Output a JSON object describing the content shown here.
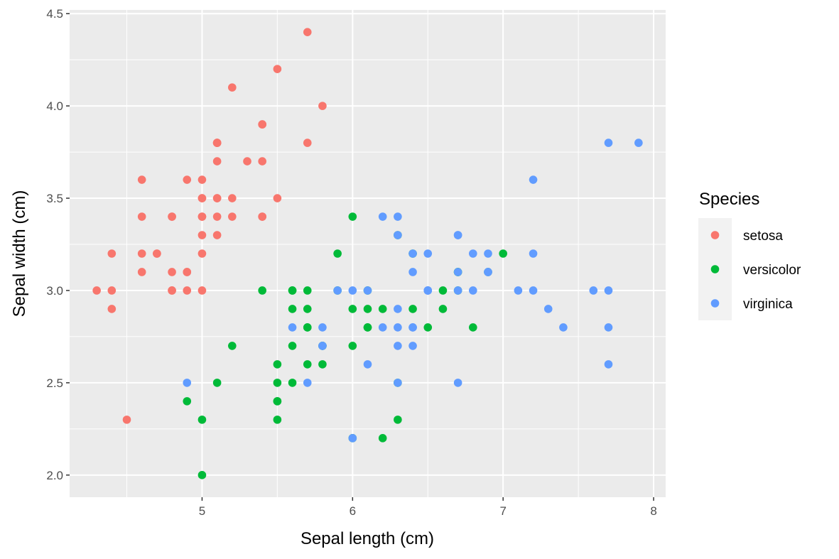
{
  "chart_data": {
    "type": "scatter",
    "title": "",
    "xlabel": "Sepal length (cm)",
    "ylabel": "Sepal width (cm)",
    "xlim": [
      4.12,
      8.08
    ],
    "ylim": [
      1.88,
      4.52
    ],
    "xticks": [
      "5",
      "6",
      "7",
      "8"
    ],
    "xtick_values": [
      5,
      6,
      7,
      8
    ],
    "yticks": [
      "2.0",
      "2.5",
      "3.0",
      "3.5",
      "4.0",
      "4.5"
    ],
    "ytick_values": [
      2.0,
      2.5,
      3.0,
      3.5,
      4.0,
      4.5
    ],
    "grid": true,
    "legend": {
      "title": "Species",
      "placement": "right"
    },
    "series": [
      {
        "name": "setosa",
        "color": "#F8766D",
        "points": [
          [
            5.1,
            3.5
          ],
          [
            4.9,
            3.0
          ],
          [
            4.7,
            3.2
          ],
          [
            4.6,
            3.1
          ],
          [
            5.0,
            3.6
          ],
          [
            5.4,
            3.9
          ],
          [
            4.6,
            3.4
          ],
          [
            5.0,
            3.4
          ],
          [
            4.4,
            2.9
          ],
          [
            4.9,
            3.1
          ],
          [
            5.4,
            3.7
          ],
          [
            4.8,
            3.4
          ],
          [
            4.8,
            3.0
          ],
          [
            4.3,
            3.0
          ],
          [
            5.8,
            4.0
          ],
          [
            5.7,
            4.4
          ],
          [
            5.4,
            3.9
          ],
          [
            5.1,
            3.5
          ],
          [
            5.7,
            3.8
          ],
          [
            5.1,
            3.8
          ],
          [
            5.4,
            3.4
          ],
          [
            5.1,
            3.7
          ],
          [
            4.6,
            3.6
          ],
          [
            5.1,
            3.3
          ],
          [
            4.8,
            3.4
          ],
          [
            5.0,
            3.0
          ],
          [
            5.0,
            3.4
          ],
          [
            5.2,
            3.5
          ],
          [
            5.2,
            3.4
          ],
          [
            4.7,
            3.2
          ],
          [
            4.8,
            3.1
          ],
          [
            5.4,
            3.4
          ],
          [
            5.2,
            4.1
          ],
          [
            5.5,
            4.2
          ],
          [
            4.9,
            3.1
          ],
          [
            5.0,
            3.2
          ],
          [
            5.5,
            3.5
          ],
          [
            4.9,
            3.6
          ],
          [
            4.4,
            3.0
          ],
          [
            5.1,
            3.4
          ],
          [
            5.0,
            3.5
          ],
          [
            4.5,
            2.3
          ],
          [
            4.4,
            3.2
          ],
          [
            5.0,
            3.5
          ],
          [
            5.1,
            3.8
          ],
          [
            4.8,
            3.0
          ],
          [
            5.1,
            3.8
          ],
          [
            4.6,
            3.2
          ],
          [
            5.3,
            3.7
          ],
          [
            5.0,
            3.3
          ]
        ]
      },
      {
        "name": "versicolor",
        "color": "#00BA38",
        "points": [
          [
            7.0,
            3.2
          ],
          [
            6.4,
            3.2
          ],
          [
            6.9,
            3.1
          ],
          [
            5.5,
            2.3
          ],
          [
            6.5,
            2.8
          ],
          [
            5.7,
            2.8
          ],
          [
            6.3,
            3.3
          ],
          [
            4.9,
            2.4
          ],
          [
            6.6,
            2.9
          ],
          [
            5.2,
            2.7
          ],
          [
            5.0,
            2.0
          ],
          [
            5.9,
            3.0
          ],
          [
            6.0,
            2.2
          ],
          [
            6.1,
            2.9
          ],
          [
            5.6,
            2.9
          ],
          [
            6.7,
            3.1
          ],
          [
            5.6,
            3.0
          ],
          [
            5.8,
            2.7
          ],
          [
            6.2,
            2.2
          ],
          [
            5.6,
            2.5
          ],
          [
            5.9,
            3.2
          ],
          [
            6.1,
            2.8
          ],
          [
            6.3,
            2.5
          ],
          [
            6.1,
            2.8
          ],
          [
            6.4,
            2.9
          ],
          [
            6.6,
            3.0
          ],
          [
            6.8,
            2.8
          ],
          [
            6.7,
            3.0
          ],
          [
            6.0,
            2.9
          ],
          [
            5.7,
            2.6
          ],
          [
            5.5,
            2.4
          ],
          [
            5.5,
            2.4
          ],
          [
            5.8,
            2.7
          ],
          [
            6.0,
            2.7
          ],
          [
            5.4,
            3.0
          ],
          [
            6.0,
            3.4
          ],
          [
            6.7,
            3.1
          ],
          [
            6.3,
            2.3
          ],
          [
            5.6,
            3.0
          ],
          [
            5.5,
            2.5
          ],
          [
            5.5,
            2.6
          ],
          [
            6.1,
            3.0
          ],
          [
            5.8,
            2.6
          ],
          [
            5.0,
            2.3
          ],
          [
            5.6,
            2.7
          ],
          [
            5.7,
            3.0
          ],
          [
            5.7,
            2.9
          ],
          [
            6.2,
            2.9
          ],
          [
            5.1,
            2.5
          ],
          [
            5.7,
            2.8
          ]
        ]
      },
      {
        "name": "virginica",
        "color": "#619CFF",
        "points": [
          [
            6.3,
            3.3
          ],
          [
            5.8,
            2.7
          ],
          [
            7.1,
            3.0
          ],
          [
            6.3,
            2.9
          ],
          [
            6.5,
            3.0
          ],
          [
            7.6,
            3.0
          ],
          [
            4.9,
            2.5
          ],
          [
            7.3,
            2.9
          ],
          [
            6.7,
            2.5
          ],
          [
            7.2,
            3.6
          ],
          [
            6.5,
            3.2
          ],
          [
            6.4,
            2.7
          ],
          [
            6.8,
            3.0
          ],
          [
            5.7,
            2.5
          ],
          [
            5.8,
            2.8
          ],
          [
            6.4,
            3.2
          ],
          [
            6.5,
            3.0
          ],
          [
            7.7,
            3.8
          ],
          [
            7.7,
            2.6
          ],
          [
            6.0,
            2.2
          ],
          [
            6.9,
            3.2
          ],
          [
            5.6,
            2.8
          ],
          [
            7.7,
            2.8
          ],
          [
            6.3,
            2.7
          ],
          [
            6.7,
            3.3
          ],
          [
            7.2,
            3.2
          ],
          [
            6.2,
            2.8
          ],
          [
            6.1,
            3.0
          ],
          [
            6.4,
            2.8
          ],
          [
            7.2,
            3.0
          ],
          [
            7.4,
            2.8
          ],
          [
            7.9,
            3.8
          ],
          [
            6.4,
            2.8
          ],
          [
            6.3,
            2.8
          ],
          [
            6.1,
            2.6
          ],
          [
            7.7,
            3.0
          ],
          [
            6.3,
            3.4
          ],
          [
            6.4,
            3.1
          ],
          [
            6.0,
            3.0
          ],
          [
            6.9,
            3.1
          ],
          [
            6.7,
            3.1
          ],
          [
            6.9,
            3.1
          ],
          [
            5.8,
            2.7
          ],
          [
            6.8,
            3.2
          ],
          [
            6.7,
            3.3
          ],
          [
            6.7,
            3.0
          ],
          [
            6.3,
            2.5
          ],
          [
            6.5,
            3.0
          ],
          [
            6.2,
            3.4
          ],
          [
            5.9,
            3.0
          ]
        ]
      }
    ]
  }
}
